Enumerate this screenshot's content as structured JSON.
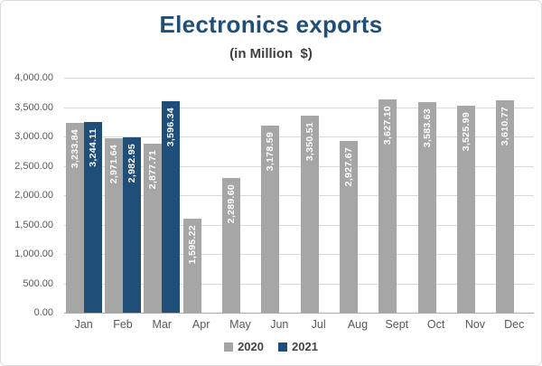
{
  "chart_data": {
    "type": "bar",
    "title": "Electronics exports",
    "subtitle": "(in Million  $)",
    "categories": [
      "Jan",
      "Feb",
      "Mar",
      "Apr",
      "May",
      "Jun",
      "Jul",
      "Aug",
      "Sept",
      "Oct",
      "Nov",
      "Dec"
    ],
    "series": [
      {
        "name": "2020",
        "color": "#A6A6A6",
        "values": [
          3233.84,
          2971.64,
          2877.71,
          1595.22,
          2289.6,
          3178.59,
          3350.51,
          2927.67,
          3627.1,
          3583.63,
          3525.99,
          3610.77
        ]
      },
      {
        "name": "2021",
        "color": "#1F4E79",
        "values": [
          3244.11,
          2982.95,
          3596.34,
          null,
          null,
          null,
          null,
          null,
          null,
          null,
          null,
          null
        ]
      }
    ],
    "ylim": [
      0,
      4000
    ],
    "ytick_step": 500,
    "ytick_labels": [
      "4,000.00",
      "3,500.00",
      "3,000.00",
      "2,500.00",
      "2,000.00",
      "1,500.00",
      "1,000.00",
      "500.00",
      "0.00"
    ],
    "grid": true,
    "legend_position": "bottom",
    "value_labels": "rotated-vertical-inside-bar-top",
    "colors": {
      "title": "#1F4E79",
      "subtitle": "#3F3F3F",
      "gridline": "#D9D9D9",
      "axis_line": "#A8A8A8",
      "tick_text": "#595959",
      "bar_value_text": "#FFFFFF"
    }
  }
}
